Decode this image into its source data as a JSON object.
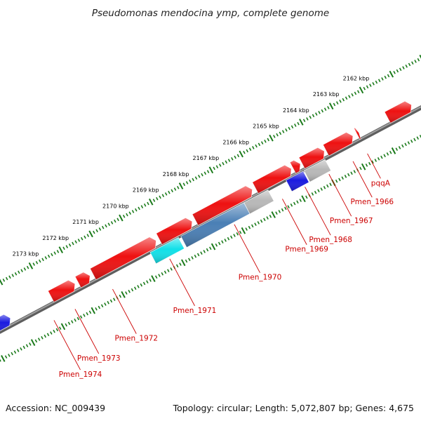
{
  "title": "Pseudomonas mendocina ymp, complete genome",
  "footer": {
    "accession": "Accession: NC_009439",
    "summary": "Topology: circular; Length: 5,072,807 bp; Genes: 4,675"
  },
  "colors": {
    "backbone": "#7a7a7a",
    "ticks": "#1a7a1a",
    "gene_red": "#ee1111",
    "gene_blue": "#1a1ae0",
    "gene_cyan": "#11e0e8",
    "gene_steel": "#4a7fb5",
    "gene_grey": "#b8b8b8",
    "label": "#cc0000"
  },
  "kbp_markers": [
    "2162 kbp",
    "2163 kbp",
    "2164 kbp",
    "2165 kbp",
    "2166 kbp",
    "2167 kbp",
    "2168 kbp",
    "2169 kbp",
    "2170 kbp",
    "2171 kbp",
    "2172 kbp",
    "2173 kbp"
  ],
  "genes": [
    {
      "id": "g-lead-blue",
      "strand": "+",
      "kbp_start": 2160.9,
      "kbp_end": 2161.7,
      "color": "gene_red"
    },
    {
      "id": "g-pqqA",
      "strand": "+",
      "kbp_start": 2162.65,
      "kbp_end": 2162.72,
      "color": "gene_red"
    },
    {
      "id": "g-pqqB",
      "strand": "+",
      "kbp_start": 2162.85,
      "kbp_end": 2163.75,
      "color": "gene_red"
    },
    {
      "id": "g-pqqC",
      "strand": "+",
      "kbp_start": 2163.8,
      "kbp_end": 2164.55,
      "color": "gene_red"
    },
    {
      "id": "g-pqqD",
      "strand": "+",
      "kbp_start": 2164.6,
      "kbp_end": 2164.85,
      "color": "gene_red"
    },
    {
      "id": "g-pqqE",
      "strand": "+",
      "kbp_start": 2164.9,
      "kbp_end": 2166.1,
      "color": "gene_red"
    },
    {
      "id": "g-mid1",
      "strand": "+",
      "kbp_start": 2166.2,
      "kbp_end": 2168.1,
      "color": "gene_red"
    },
    {
      "id": "g-mid2",
      "strand": "+",
      "kbp_start": 2168.2,
      "kbp_end": 2169.3,
      "color": "gene_red"
    },
    {
      "id": "g-left1",
      "strand": "+",
      "kbp_start": 2169.4,
      "kbp_end": 2171.5,
      "color": "gene_red"
    },
    {
      "id": "g-left2",
      "strand": "+",
      "kbp_start": 2171.6,
      "kbp_end": 2172.0,
      "color": "gene_red"
    },
    {
      "id": "g-left3",
      "strand": "+",
      "kbp_start": 2172.1,
      "kbp_end": 2172.9,
      "color": "gene_red"
    },
    {
      "id": "g-edge-blue",
      "strand": "+",
      "kbp_start": 2174.25,
      "kbp_end": 2174.8,
      "color": "gene_blue"
    },
    {
      "id": "g-1966",
      "strand": "-",
      "kbp_start": 2163.9,
      "kbp_end": 2164.6,
      "color": "gene_grey"
    },
    {
      "id": "g-1967",
      "strand": "-",
      "kbp_start": 2164.63,
      "kbp_end": 2165.2,
      "color": "gene_blue"
    },
    {
      "id": "g-1969",
      "strand": "-",
      "kbp_start": 2165.8,
      "kbp_end": 2166.6,
      "color": "gene_grey"
    },
    {
      "id": "g-1970",
      "strand": "-",
      "kbp_start": 2166.6,
      "kbp_end": 2168.7,
      "color": "gene_steel"
    },
    {
      "id": "g-1971",
      "strand": "-",
      "kbp_start": 2168.78,
      "kbp_end": 2169.72,
      "color": "gene_cyan"
    }
  ],
  "gene_labels": [
    {
      "text": "pqqA",
      "kbp": 2162.72,
      "dist": 40
    },
    {
      "text": "Pmen_1966",
      "kbp": 2163.2,
      "dist": 58
    },
    {
      "text": "Pmen_1967",
      "kbp": 2164.0,
      "dist": 68
    },
    {
      "text": "Pmen_1968",
      "kbp": 2164.8,
      "dist": 78
    },
    {
      "text": "Pmen_1969",
      "kbp": 2165.55,
      "dist": 74
    },
    {
      "text": "Pmen_1970",
      "kbp": 2167.15,
      "dist": 78
    },
    {
      "text": "Pmen_1971",
      "kbp": 2169.3,
      "dist": 76
    },
    {
      "text": "Pmen_1972",
      "kbp": 2171.2,
      "dist": 72
    },
    {
      "text": "Pmen_1973",
      "kbp": 2172.45,
      "dist": 72
    },
    {
      "text": "Pmen_1974",
      "kbp": 2173.15,
      "dist": 80
    }
  ]
}
